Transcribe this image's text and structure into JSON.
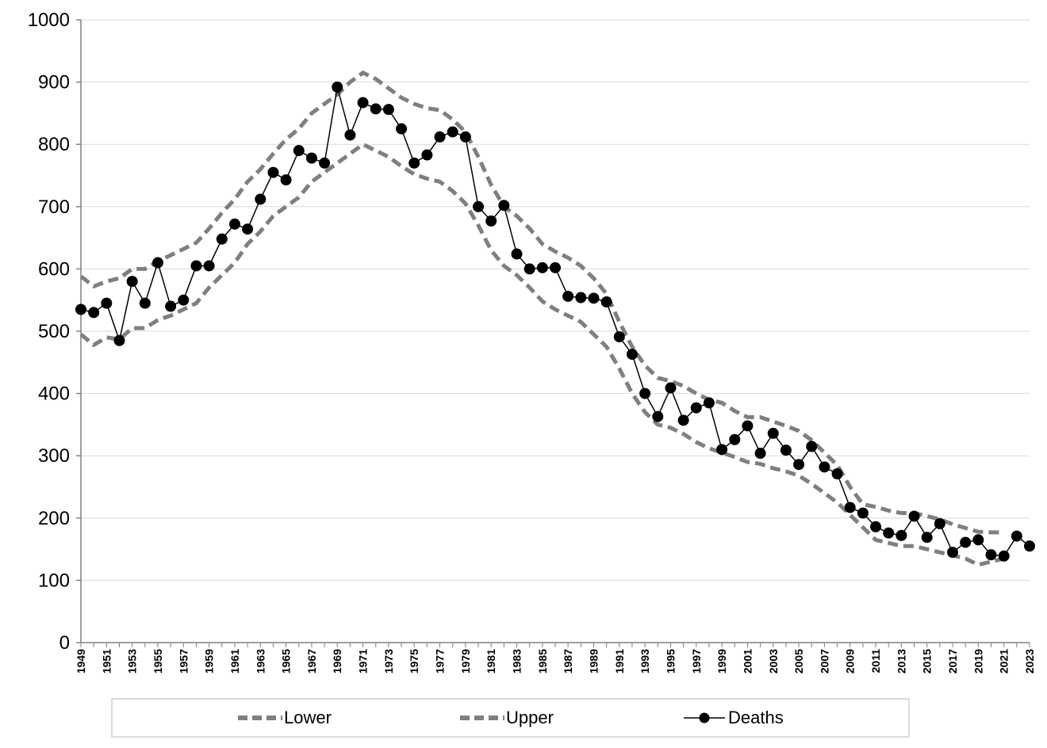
{
  "chart_data": {
    "type": "line",
    "title": "",
    "xlabel": "",
    "ylabel": "",
    "ylim": [
      0,
      1000
    ],
    "yticks": [
      0,
      100,
      200,
      300,
      400,
      500,
      600,
      700,
      800,
      900,
      1000
    ],
    "grid": "horizontal",
    "legend_position": "bottom",
    "x": [
      1949,
      1950,
      1951,
      1952,
      1953,
      1954,
      1955,
      1956,
      1957,
      1958,
      1959,
      1960,
      1961,
      1962,
      1963,
      1964,
      1965,
      1966,
      1967,
      1968,
      1969,
      1970,
      1971,
      1972,
      1973,
      1974,
      1975,
      1976,
      1977,
      1978,
      1979,
      1980,
      1981,
      1982,
      1983,
      1984,
      1985,
      1986,
      1987,
      1988,
      1989,
      1990,
      1991,
      1992,
      1993,
      1994,
      1995,
      1996,
      1997,
      1998,
      1999,
      2000,
      2001,
      2002,
      2003,
      2004,
      2005,
      2006,
      2007,
      2008,
      2009,
      2010,
      2011,
      2012,
      2013,
      2014,
      2015,
      2016,
      2017,
      2018,
      2019,
      2020,
      2021,
      2022,
      2023
    ],
    "x_tick_labels": [
      "1949",
      "1951",
      "1953",
      "1955",
      "1957",
      "1959",
      "1961",
      "1963",
      "1965",
      "1967",
      "1969",
      "1971",
      "1973",
      "1975",
      "1977",
      "1979",
      "1981",
      "1983",
      "1985",
      "1987",
      "1989",
      "1991",
      "1993",
      "1995",
      "1997",
      "1999",
      "2001",
      "2003",
      "2005",
      "2007",
      "2009",
      "2011",
      "2013",
      "2015",
      "2017",
      "2019",
      "2021",
      "2023"
    ],
    "series": [
      {
        "name": "Lower",
        "color": "#7f7f7f",
        "style": "dashed",
        "values": [
          495,
          478,
          490,
          487,
          505,
          505,
          518,
          525,
          535,
          545,
          570,
          590,
          610,
          640,
          660,
          685,
          700,
          715,
          740,
          755,
          770,
          785,
          800,
          790,
          780,
          765,
          752,
          745,
          740,
          725,
          705,
          670,
          630,
          605,
          590,
          570,
          548,
          535,
          525,
          515,
          495,
          475,
          440,
          400,
          370,
          350,
          345,
          335,
          322,
          312,
          305,
          298,
          290,
          287,
          280,
          275,
          268,
          255,
          240,
          225,
          205,
          185,
          165,
          160,
          155,
          155,
          150,
          145,
          140,
          135,
          125,
          130,
          135,
          null,
          null
        ]
      },
      {
        "name": "Upper",
        "color": "#7f7f7f",
        "style": "dashed",
        "values": [
          588,
          572,
          580,
          585,
          600,
          600,
          612,
          622,
          632,
          642,
          665,
          690,
          712,
          740,
          760,
          785,
          808,
          825,
          850,
          865,
          880,
          900,
          915,
          905,
          890,
          875,
          865,
          858,
          855,
          840,
          820,
          780,
          735,
          700,
          685,
          665,
          640,
          628,
          618,
          605,
          585,
          560,
          515,
          475,
          445,
          425,
          420,
          412,
          400,
          390,
          385,
          372,
          362,
          362,
          355,
          348,
          340,
          325,
          305,
          285,
          250,
          222,
          218,
          212,
          208,
          208,
          203,
          198,
          190,
          184,
          178,
          177,
          177,
          null,
          null
        ]
      },
      {
        "name": "Deaths",
        "color": "#000000",
        "style": "solid-markers",
        "values": [
          535,
          530,
          545,
          485,
          580,
          545,
          610,
          540,
          550,
          605,
          605,
          648,
          672,
          664,
          712,
          755,
          743,
          790,
          778,
          770,
          892,
          815,
          867,
          857,
          856,
          825,
          770,
          783,
          812,
          820,
          812,
          700,
          677,
          702,
          624,
          600,
          602,
          602,
          556,
          554,
          553,
          547,
          491,
          463,
          400,
          363,
          409,
          357,
          377,
          385,
          310,
          326,
          348,
          304,
          336,
          309,
          286,
          315,
          282,
          271,
          217,
          208,
          186,
          176,
          172,
          203,
          169,
          191,
          145,
          161,
          165,
          141,
          139,
          171,
          155
        ]
      }
    ]
  }
}
